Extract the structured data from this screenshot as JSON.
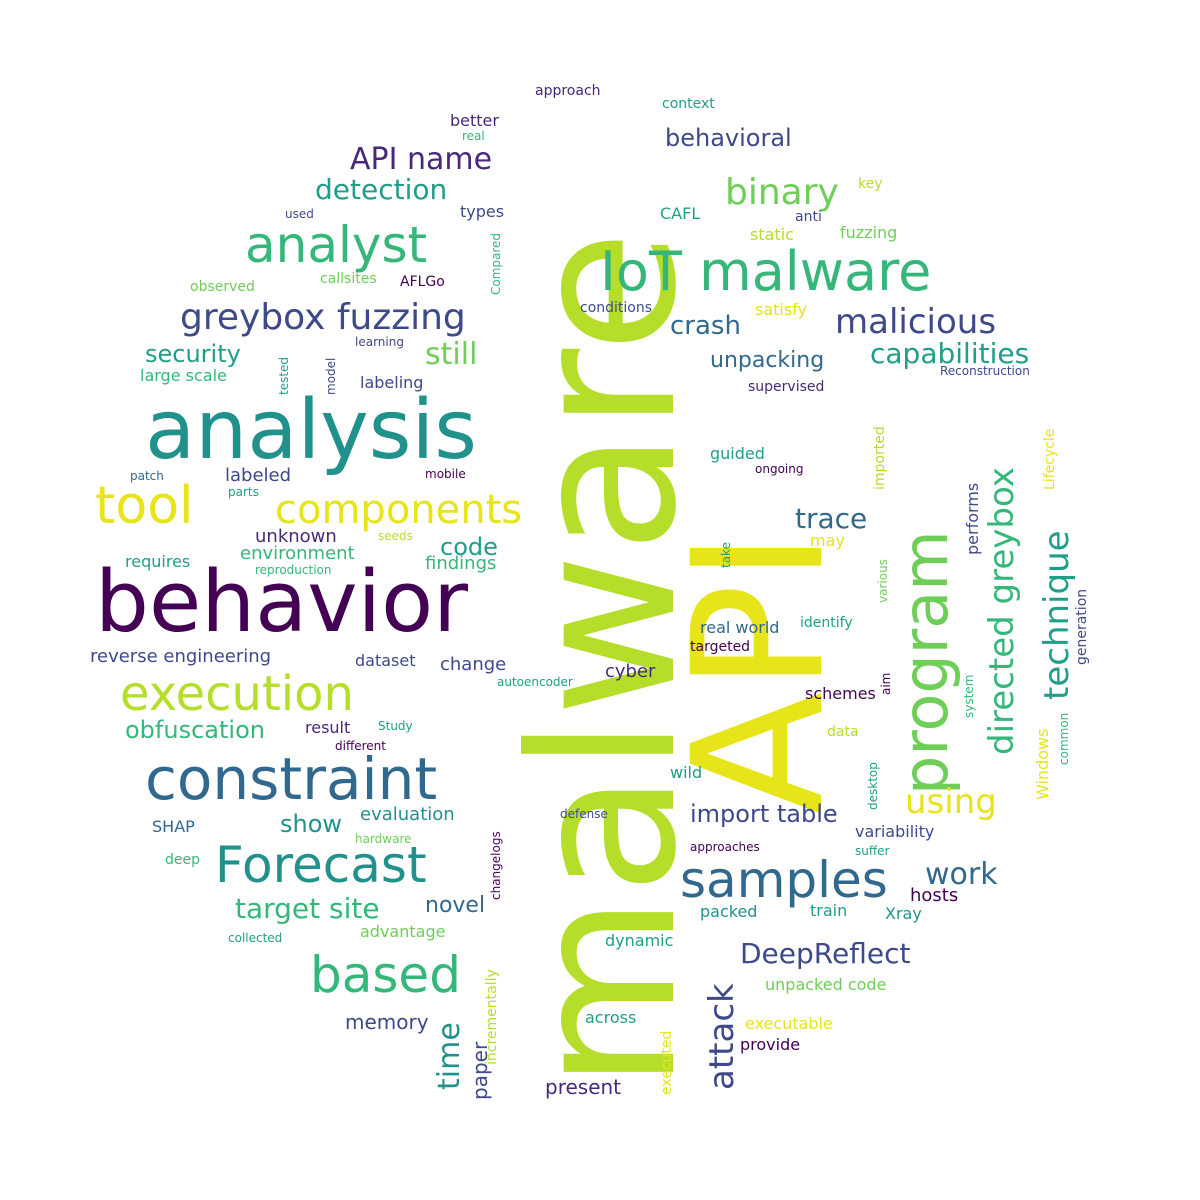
{
  "colors": {
    "c1": "#b5de2b",
    "c2": "#e7e419",
    "c3": "#21918c",
    "c4": "#440154",
    "c5": "#3e4989",
    "c6": "#35b779",
    "c7": "#6ece58",
    "c8": "#1f9e89",
    "c9": "#31688e",
    "c10": "#482878"
  },
  "words": [
    {
      "text": "malware",
      "color": "#b5de2b",
      "rot": -90
    },
    {
      "text": "API",
      "color": "#e7e419",
      "rot": -90
    },
    {
      "text": "behavior",
      "color": "#440154"
    },
    {
      "text": "analysis",
      "color": "#21918c"
    },
    {
      "text": "program",
      "color": "#6ece58",
      "rot": -90
    },
    {
      "text": "constraint",
      "color": "#31688e"
    },
    {
      "text": "IoT malware",
      "color": "#35b779"
    },
    {
      "text": "execution",
      "color": "#b5de2b"
    },
    {
      "text": "Forecast",
      "color": "#21918c"
    },
    {
      "text": "analyst",
      "color": "#35b779"
    },
    {
      "text": "samples",
      "color": "#31688e"
    },
    {
      "text": "based",
      "color": "#35b779"
    },
    {
      "text": "tool",
      "color": "#e7e419"
    },
    {
      "text": "components",
      "color": "#e7e419"
    },
    {
      "text": "greybox fuzzing",
      "color": "#3e4989"
    },
    {
      "text": "directed greybox",
      "color": "#35b779",
      "rot": -90
    },
    {
      "text": "technique",
      "color": "#1f9e89",
      "rot": -90
    },
    {
      "text": "malicious",
      "color": "#3e4989"
    },
    {
      "text": "binary",
      "color": "#6ece58"
    },
    {
      "text": "attack",
      "color": "#3e4989",
      "rot": -90
    },
    {
      "text": "using",
      "color": "#e7e419"
    },
    {
      "text": "DeepReflect",
      "color": "#3e4989"
    },
    {
      "text": "capabilities",
      "color": "#1f9e89"
    },
    {
      "text": "time",
      "color": "#21918c",
      "rot": -90
    },
    {
      "text": "API name",
      "color": "#482878"
    },
    {
      "text": "detection",
      "color": "#1f9e89"
    },
    {
      "text": "target site",
      "color": "#35b779"
    },
    {
      "text": "trace",
      "color": "#31688e"
    },
    {
      "text": "work",
      "color": "#31688e"
    },
    {
      "text": "crash",
      "color": "#31688e"
    },
    {
      "text": "still",
      "color": "#6ece58"
    },
    {
      "text": "obfuscation",
      "color": "#35b779"
    },
    {
      "text": "security",
      "color": "#1f9e89"
    },
    {
      "text": "show",
      "color": "#21918c"
    },
    {
      "text": "import table",
      "color": "#3e4989"
    },
    {
      "text": "behavioral",
      "color": "#3e4989"
    },
    {
      "text": "code",
      "color": "#1f9e89"
    },
    {
      "text": "novel",
      "color": "#31688e"
    },
    {
      "text": "unpacking",
      "color": "#31688e"
    },
    {
      "text": "memory",
      "color": "#3e4989"
    },
    {
      "text": "paper",
      "color": "#3e4989",
      "rot": -90
    },
    {
      "text": "present",
      "color": "#482878"
    },
    {
      "text": "reverse engineering",
      "color": "#3e4989"
    },
    {
      "text": "evaluation",
      "color": "#21918c"
    },
    {
      "text": "findings",
      "color": "#35b779"
    },
    {
      "text": "environment",
      "color": "#35b779"
    },
    {
      "text": "unknown",
      "color": "#482878"
    },
    {
      "text": "labeled",
      "color": "#3e4989"
    },
    {
      "text": "change",
      "color": "#3e4989"
    },
    {
      "text": "cyber",
      "color": "#482878"
    },
    {
      "text": "dataset",
      "color": "#3e4989"
    },
    {
      "text": "result",
      "color": "#482878"
    },
    {
      "text": "schemes",
      "color": "#440154"
    },
    {
      "text": "real world",
      "color": "#31688e"
    },
    {
      "text": "hosts",
      "color": "#440154"
    },
    {
      "text": "train",
      "color": "#1f9e89"
    },
    {
      "text": "Xray",
      "color": "#21918c"
    },
    {
      "text": "packed",
      "color": "#21918c"
    },
    {
      "text": "dynamic",
      "color": "#1f9e89"
    },
    {
      "text": "across",
      "color": "#1f9e89"
    },
    {
      "text": "provide",
      "color": "#440154"
    },
    {
      "text": "unpacked code",
      "color": "#6ece58"
    },
    {
      "text": "executable",
      "color": "#e7e419"
    },
    {
      "text": "advantage",
      "color": "#6ece58"
    },
    {
      "text": "variability",
      "color": "#3e4989"
    },
    {
      "text": "SHAP",
      "color": "#31688e"
    },
    {
      "text": "requires",
      "color": "#1f9e89"
    },
    {
      "text": "large scale",
      "color": "#35b779"
    },
    {
      "text": "labeling",
      "color": "#3e4989"
    },
    {
      "text": "guided",
      "color": "#1f9e89"
    },
    {
      "text": "static",
      "color": "#b5de2b"
    },
    {
      "text": "fuzzing",
      "color": "#6ece58"
    },
    {
      "text": "satisfy",
      "color": "#e7e419"
    },
    {
      "text": "CAFL",
      "color": "#1f9e89"
    },
    {
      "text": "types",
      "color": "#3e4989"
    },
    {
      "text": "better",
      "color": "#482878"
    },
    {
      "text": "context",
      "color": "#1f9e89"
    },
    {
      "text": "approach",
      "color": "#482878"
    },
    {
      "text": "real",
      "color": "#35b779"
    },
    {
      "text": "used",
      "color": "#3e4989"
    },
    {
      "text": "observed",
      "color": "#6ece58"
    },
    {
      "text": "callsites",
      "color": "#6ece58"
    },
    {
      "text": "AFLGo",
      "color": "#440154"
    },
    {
      "text": "Compared",
      "color": "#35b779",
      "rot": -90
    },
    {
      "text": "conditions",
      "color": "#3e4989"
    },
    {
      "text": "anti",
      "color": "#3e4989"
    },
    {
      "text": "key",
      "color": "#b5de2b"
    },
    {
      "text": "learning",
      "color": "#3e4989"
    },
    {
      "text": "model",
      "color": "#3e4989",
      "rot": -90
    },
    {
      "text": "tested",
      "color": "#1f9e89",
      "rot": -90
    },
    {
      "text": "supervised",
      "color": "#482878"
    },
    {
      "text": "Reconstruction",
      "color": "#3e4989"
    },
    {
      "text": "imported",
      "color": "#b5de2b",
      "rot": -90
    },
    {
      "text": "Lifecycle",
      "color": "#e7e419",
      "rot": -90
    },
    {
      "text": "ongoing",
      "color": "#440154"
    },
    {
      "text": "patch",
      "color": "#31688e"
    },
    {
      "text": "parts",
      "color": "#1f9e89"
    },
    {
      "text": "mobile",
      "color": "#440154"
    },
    {
      "text": "seeds",
      "color": "#b5de2b"
    },
    {
      "text": "reproduction",
      "color": "#35b779"
    },
    {
      "text": "take",
      "color": "#1f9e89",
      "rot": -90
    },
    {
      "text": "may",
      "color": "#e7e419"
    },
    {
      "text": "performs",
      "color": "#3e4989",
      "rot": -90
    },
    {
      "text": "various",
      "color": "#6ece58",
      "rot": -90
    },
    {
      "text": "identify",
      "color": "#1f9e89"
    },
    {
      "text": "generation",
      "color": "#3e4989",
      "rot": -90
    },
    {
      "text": "targeted",
      "color": "#440154"
    },
    {
      "text": "aim",
      "color": "#440154",
      "rot": -90
    },
    {
      "text": "autoencoder",
      "color": "#1f9e89"
    },
    {
      "text": "system",
      "color": "#35b779",
      "rot": -90
    },
    {
      "text": "Study",
      "color": "#1f9e89"
    },
    {
      "text": "different",
      "color": "#440154"
    },
    {
      "text": "data",
      "color": "#b5de2b"
    },
    {
      "text": "Windows",
      "color": "#e7e419",
      "rot": -90
    },
    {
      "text": "common",
      "color": "#35b779",
      "rot": -90
    },
    {
      "text": "desktop",
      "color": "#1f9e89",
      "rot": -90
    },
    {
      "text": "wild",
      "color": "#1f9e89"
    },
    {
      "text": "defense",
      "color": "#3e4989"
    },
    {
      "text": "hardware",
      "color": "#6ece58"
    },
    {
      "text": "changelogs",
      "color": "#440154",
      "rot": -90
    },
    {
      "text": "approaches",
      "color": "#440154"
    },
    {
      "text": "suffer",
      "color": "#1f9e89"
    },
    {
      "text": "deep",
      "color": "#35b779"
    },
    {
      "text": "collected",
      "color": "#1f9e89"
    },
    {
      "text": "incrementally",
      "color": "#b5de2b",
      "rot": -90
    },
    {
      "text": "executed",
      "color": "#e7e419",
      "rot": -90
    }
  ]
}
